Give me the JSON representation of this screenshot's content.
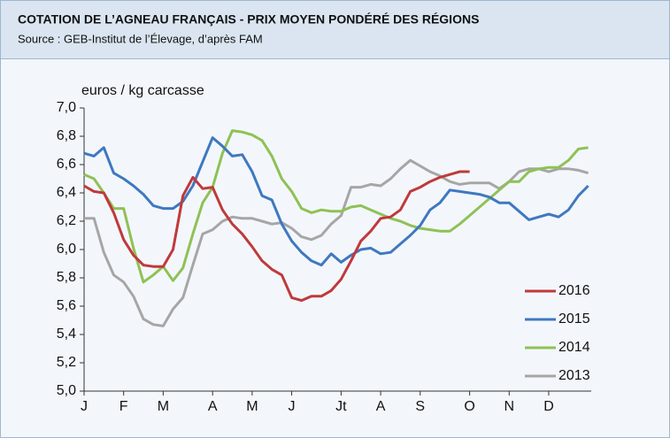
{
  "chart_data": {
    "type": "line",
    "title": "COTATION DE L’AGNEAU FRANÇAIS - PRIX MOYEN PONDÉRÉ DES RÉGIONS",
    "subtitle": "Source : GEB-Institut de l’Élevage, d’après FAM",
    "y_label": "euros / kg carcasse",
    "x": [
      1,
      2,
      3,
      4,
      5,
      6,
      7,
      8,
      9,
      10,
      11,
      12,
      13,
      14,
      15,
      16,
      17,
      18,
      19,
      20,
      21,
      22,
      23,
      24,
      25,
      26,
      27,
      28,
      29,
      30,
      31,
      32,
      33,
      34,
      35,
      36,
      37,
      38,
      39,
      40,
      41,
      42,
      43,
      44,
      45,
      46,
      47,
      48,
      49,
      50,
      51,
      52
    ],
    "xlim": [
      1,
      52.3
    ],
    "xticks": [
      {
        "value": 1,
        "label": "J"
      },
      {
        "value": 5,
        "label": "F"
      },
      {
        "value": 9,
        "label": "M"
      },
      {
        "value": 14,
        "label": "A"
      },
      {
        "value": 18,
        "label": "M"
      },
      {
        "value": 22,
        "label": "J"
      },
      {
        "value": 27,
        "label": "Jt"
      },
      {
        "value": 31,
        "label": "A"
      },
      {
        "value": 35,
        "label": "S"
      },
      {
        "value": 40,
        "label": "O"
      },
      {
        "value": 44,
        "label": "N"
      },
      {
        "value": 48,
        "label": "D"
      }
    ],
    "ylim": [
      5.0,
      7.0
    ],
    "yticks": [
      {
        "value": 5.0,
        "label": "5,0"
      },
      {
        "value": 5.2,
        "label": "5,2"
      },
      {
        "value": 5.4,
        "label": "5,4"
      },
      {
        "value": 5.6,
        "label": "5,6"
      },
      {
        "value": 5.8,
        "label": "5,8"
      },
      {
        "value": 6.0,
        "label": "6,0"
      },
      {
        "value": 6.2,
        "label": "6,2"
      },
      {
        "value": 6.4,
        "label": "6,4"
      },
      {
        "value": 6.6,
        "label": "6,6"
      },
      {
        "value": 6.8,
        "label": "6,8"
      },
      {
        "value": 7.0,
        "label": "7,0"
      }
    ],
    "grid": false,
    "legend": "right",
    "series": [
      {
        "name": "2016",
        "color": "#c0393b",
        "values": [
          6.45,
          6.41,
          6.4,
          6.26,
          6.07,
          5.96,
          5.89,
          5.88,
          5.88,
          6.0,
          6.38,
          6.51,
          6.43,
          6.44,
          6.28,
          6.18,
          6.11,
          6.02,
          5.92,
          5.86,
          5.82,
          5.66,
          5.64,
          5.67,
          5.67,
          5.71,
          5.79,
          5.92,
          6.06,
          6.13,
          6.22,
          6.23,
          6.28,
          6.41,
          6.44,
          6.48,
          6.51,
          6.53,
          6.55,
          6.55,
          null,
          null,
          null,
          null,
          null,
          null,
          null,
          null,
          null,
          null,
          null,
          null
        ]
      },
      {
        "name": "2015",
        "color": "#3f78c0",
        "values": [
          6.68,
          6.66,
          6.72,
          6.54,
          6.5,
          6.45,
          6.39,
          6.31,
          6.29,
          6.29,
          6.34,
          6.45,
          6.62,
          6.79,
          6.73,
          6.66,
          6.67,
          6.55,
          6.38,
          6.35,
          6.18,
          6.06,
          5.98,
          5.92,
          5.89,
          5.97,
          5.91,
          5.96,
          6.0,
          6.01,
          5.97,
          5.98,
          6.04,
          6.1,
          6.17,
          6.28,
          6.33,
          6.42,
          6.41,
          6.4,
          6.39,
          6.37,
          6.33,
          6.33,
          6.27,
          6.21,
          6.23,
          6.25,
          6.23,
          6.28,
          6.38,
          6.45
        ]
      },
      {
        "name": "2014",
        "color": "#8fc155",
        "values": [
          6.53,
          6.5,
          6.4,
          6.29,
          6.29,
          6.01,
          5.77,
          5.82,
          5.88,
          5.78,
          5.87,
          6.11,
          6.33,
          6.44,
          6.68,
          6.84,
          6.83,
          6.81,
          6.77,
          6.66,
          6.5,
          6.41,
          6.29,
          6.26,
          6.28,
          6.27,
          6.27,
          6.3,
          6.31,
          6.28,
          6.25,
          6.22,
          6.2,
          6.17,
          6.15,
          6.14,
          6.13,
          6.13,
          6.18,
          6.24,
          6.3,
          6.36,
          6.42,
          6.48,
          6.48,
          6.55,
          6.57,
          6.58,
          6.58,
          6.63,
          6.71,
          6.72
        ]
      },
      {
        "name": "2013",
        "color": "#a6a6a6",
        "values": [
          6.22,
          6.22,
          5.98,
          5.82,
          5.77,
          5.67,
          5.51,
          5.47,
          5.46,
          5.58,
          5.66,
          5.89,
          6.11,
          6.14,
          6.2,
          6.23,
          6.22,
          6.22,
          6.2,
          6.18,
          6.19,
          6.15,
          6.09,
          6.07,
          6.1,
          6.18,
          6.24,
          6.44,
          6.44,
          6.46,
          6.45,
          6.5,
          6.57,
          6.63,
          6.59,
          6.55,
          6.52,
          6.48,
          6.46,
          6.47,
          6.47,
          6.47,
          6.43,
          6.48,
          6.55,
          6.57,
          6.57,
          6.55,
          6.57,
          6.57,
          6.56,
          6.54
        ]
      }
    ]
  }
}
